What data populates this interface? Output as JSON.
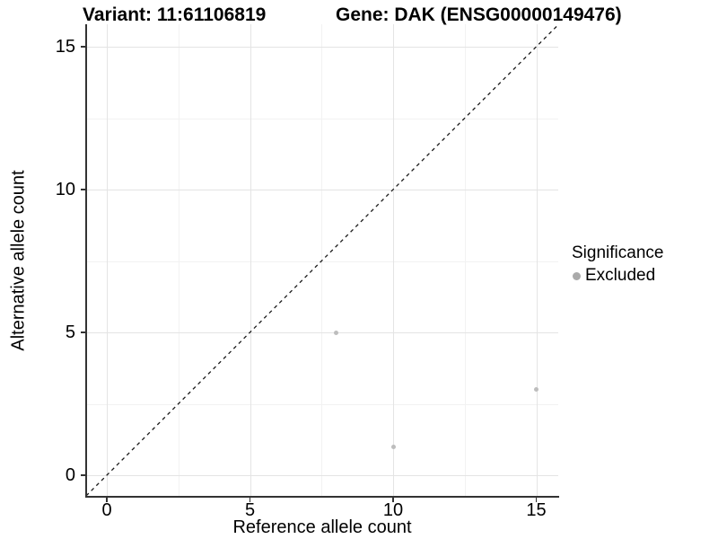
{
  "titles": {
    "variant": "Variant: 11:61106819",
    "gene": "Gene: DAK (ENSG00000149476)"
  },
  "chart_data": {
    "type": "scatter",
    "title_left": "Variant: 11:61106819",
    "title_right": "Gene: DAK (ENSG00000149476)",
    "xlabel": "Reference allele count",
    "ylabel": "Alternative allele count",
    "xlim": [
      -0.75,
      15.75
    ],
    "ylim": [
      -0.75,
      15.75
    ],
    "x_ticks": [
      0,
      5,
      10,
      15
    ],
    "y_ticks": [
      0,
      5,
      10,
      15
    ],
    "x_minor_ticks": [
      2.5,
      7.5,
      12.5
    ],
    "y_minor_ticks": [
      2.5,
      7.5,
      12.5
    ],
    "grid": true,
    "identity_line": {
      "style": "dashed",
      "slope": 1,
      "intercept": 0,
      "color": "#1a1a1a"
    },
    "series": [
      {
        "name": "Excluded",
        "color": "#bdbdbd",
        "points": [
          {
            "x": 8,
            "y": 5
          },
          {
            "x": 10,
            "y": 1
          },
          {
            "x": 15,
            "y": 3
          }
        ]
      }
    ],
    "legend": {
      "position": "right",
      "title": "Significance",
      "entries": [
        {
          "label": "Excluded",
          "color": "#aaaaaa"
        }
      ]
    }
  },
  "colors": {
    "background": "#ffffff",
    "grid_major": "#e4e4e4",
    "grid_minor": "#f2f2f2",
    "axis_line": "#333333",
    "point": "#bdbdbd",
    "text": "#000000"
  }
}
